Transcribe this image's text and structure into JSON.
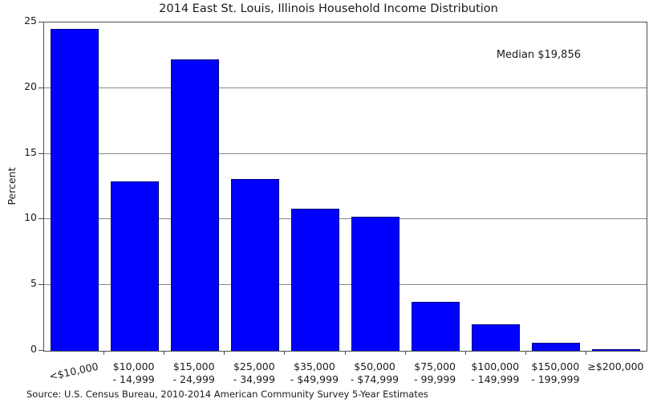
{
  "title": "2014 East St. Louis, Illinois Household Income Distribution",
  "source_note": "Source: U.S. Census Bureau, 2010-2014 American Community Survey 5-Year Estimates",
  "colors": {
    "bar_fill": "#0000ff",
    "bar_edge": "#000080",
    "grid": "#888888",
    "frame": "#4d4d4d",
    "text": "#1a1a1a"
  },
  "chart_data": {
    "type": "bar",
    "title": "2014 East St. Louis, Illinois Household Income Distribution",
    "xlabel": "",
    "ylabel": "Percent",
    "ylim": [
      0,
      25
    ],
    "yticks": [
      0,
      5,
      10,
      15,
      20,
      25
    ],
    "grid": "horizontal gridlines at y ticks, drawn behind bars",
    "legend": null,
    "categories": [
      [
        "<$10,000"
      ],
      [
        "$10,000",
        "- 14,999"
      ],
      [
        "$15,000",
        "- 24,999"
      ],
      [
        "$25,000",
        "- 34,999"
      ],
      [
        "$35,000",
        "- $49,999"
      ],
      [
        "$50,000",
        "- $74,999"
      ],
      [
        "$75,000",
        "- 99,999"
      ],
      [
        "$100,000",
        "- 149,999"
      ],
      [
        "$150,000",
        "- 199,999"
      ],
      [
        "≥$200,000"
      ]
    ],
    "values": [
      24.5,
      12.9,
      22.2,
      13.1,
      10.8,
      10.2,
      3.7,
      2.0,
      0.6,
      0.1
    ],
    "annotations": [
      {
        "text": "Median $19,856",
        "position": "upper-right"
      }
    ]
  }
}
